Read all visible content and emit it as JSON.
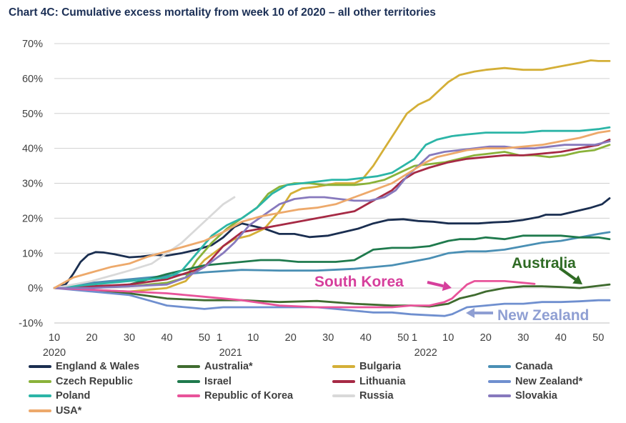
{
  "chart_data": {
    "type": "line",
    "title": "Chart 4C: Cumulative excess mortality from week 10 of 2020 – all other territories",
    "xlabel": "",
    "ylabel": "",
    "ylim": [
      -10,
      70
    ],
    "y_ticks": [
      "70%",
      "60%",
      "50%",
      "40%",
      "30%",
      "20%",
      "10%",
      "0%",
      "-10%"
    ],
    "x_ticks": [
      {
        "week": 10,
        "label": "10"
      },
      {
        "week": 20,
        "label": "20"
      },
      {
        "week": 30,
        "label": "30"
      },
      {
        "week": 40,
        "label": "40"
      },
      {
        "week": 50,
        "label": "50"
      },
      {
        "week": 54,
        "label": "1"
      },
      {
        "week": 63,
        "label": "10"
      },
      {
        "week": 73,
        "label": "20"
      },
      {
        "week": 83,
        "label": "30"
      },
      {
        "week": 93,
        "label": "40"
      },
      {
        "week": 103,
        "label": "50"
      },
      {
        "week": 106,
        "label": "1"
      },
      {
        "week": 115,
        "label": "10"
      },
      {
        "week": 125,
        "label": "20"
      },
      {
        "week": 135,
        "label": "30"
      },
      {
        "week": 145,
        "label": "40"
      },
      {
        "week": 155,
        "label": "50"
      }
    ],
    "year_labels": [
      {
        "week": 10,
        "label": "2020"
      },
      {
        "week": 57,
        "label": "2021"
      },
      {
        "week": 109,
        "label": "2022"
      }
    ],
    "x_range": [
      10,
      158
    ],
    "grid": true,
    "legend_position": "bottom",
    "series": [
      {
        "name": "England & Wales",
        "color": "#1a2e50",
        "x": [
          10,
          13,
          15,
          17,
          19,
          21,
          23,
          26,
          30,
          33,
          37,
          40,
          44,
          48,
          52,
          55,
          58,
          60,
          62,
          66,
          70,
          74,
          78,
          83,
          87,
          91,
          95,
          99,
          103,
          107,
          111,
          115,
          119,
          123,
          127,
          131,
          135,
          139,
          141,
          145,
          149,
          153,
          156,
          158
        ],
        "y": [
          0,
          1,
          4,
          7.5,
          9.5,
          10.3,
          10.2,
          9.7,
          8.8,
          9,
          9.5,
          9.3,
          10,
          11,
          12.3,
          14.5,
          17.5,
          18.5,
          18,
          17,
          15.5,
          15.5,
          14.6,
          15,
          16,
          17,
          18.5,
          19.5,
          19.7,
          19.2,
          19,
          18.5,
          18.5,
          18.5,
          18.8,
          19,
          19.5,
          20.3,
          21,
          21,
          22,
          23,
          24,
          25.7
        ]
      },
      {
        "name": "Australia*",
        "color": "#3f6b2f",
        "x": [
          10,
          20,
          30,
          40,
          50,
          60,
          70,
          80,
          90,
          100,
          105,
          110,
          115,
          118,
          122,
          125,
          130,
          135,
          140,
          145,
          150,
          158
        ],
        "y": [
          0,
          -0.5,
          -1.5,
          -3,
          -3.5,
          -3.5,
          -4,
          -3.7,
          -4.5,
          -5,
          -5,
          -5.3,
          -4.5,
          -3,
          -2,
          -1,
          0,
          0.5,
          0.5,
          0.3,
          0,
          1
        ]
      },
      {
        "name": "Bulgaria",
        "color": "#d4af37",
        "x": [
          10,
          20,
          30,
          40,
          45,
          50,
          55,
          58,
          62,
          66,
          70,
          73,
          76,
          80,
          85,
          90,
          92,
          95,
          98,
          101,
          104,
          107,
          110,
          113,
          115,
          118,
          122,
          125,
          130,
          135,
          140,
          145,
          150,
          153,
          155,
          158
        ],
        "y": [
          0,
          -0.5,
          -1,
          0,
          2,
          8,
          12,
          14,
          15,
          17,
          22,
          27,
          28.5,
          29,
          30,
          30,
          31,
          35,
          40,
          45,
          50,
          52.5,
          54,
          57,
          59,
          61,
          62,
          62.5,
          63,
          62.5,
          62.5,
          63.5,
          64.5,
          65.2,
          65,
          65
        ]
      },
      {
        "name": "Canada",
        "color": "#4a8fb4",
        "x": [
          10,
          20,
          30,
          40,
          50,
          60,
          70,
          80,
          90,
          100,
          110,
          115,
          120,
          125,
          130,
          135,
          140,
          145,
          150,
          155,
          158
        ],
        "y": [
          0,
          1.5,
          2.5,
          3.5,
          4.5,
          5.2,
          5,
          5,
          5.5,
          6.5,
          8.5,
          10,
          10.5,
          10.5,
          11,
          12,
          13,
          13.5,
          14.5,
          15.5,
          16
        ]
      },
      {
        "name": "Czech Republic",
        "color": "#8ab23a",
        "x": [
          10,
          20,
          30,
          40,
          45,
          48,
          52,
          56,
          60,
          64,
          67,
          70,
          74,
          78,
          82,
          86,
          90,
          94,
          98,
          102,
          106,
          110,
          114,
          118,
          122,
          126,
          130,
          134,
          138,
          142,
          146,
          150,
          154,
          158
        ],
        "y": [
          0,
          0.2,
          0.5,
          1.5,
          3,
          8,
          13,
          17,
          20,
          23,
          27,
          29,
          30,
          30,
          29.5,
          29.5,
          29.5,
          30,
          31,
          33,
          35,
          35.5,
          36,
          37,
          38,
          38.5,
          39,
          38,
          38,
          37.5,
          38,
          39,
          39.5,
          41
        ]
      },
      {
        "name": "Israel",
        "color": "#1f7a4d",
        "x": [
          10,
          20,
          30,
          40,
          50,
          55,
          60,
          65,
          70,
          75,
          80,
          85,
          90,
          95,
          100,
          105,
          110,
          115,
          118,
          122,
          125,
          130,
          135,
          140,
          145,
          150,
          155,
          158
        ],
        "y": [
          0,
          0,
          1,
          4,
          6.5,
          7,
          7.5,
          8,
          8,
          7.5,
          7.5,
          7.5,
          8,
          11,
          11.5,
          11.5,
          12,
          13.5,
          14,
          14,
          14.5,
          14,
          15,
          15,
          15,
          14.5,
          14.5,
          14
        ]
      },
      {
        "name": "Lithuania",
        "color": "#a62a45",
        "x": [
          10,
          20,
          30,
          40,
          50,
          55,
          60,
          65,
          70,
          75,
          80,
          85,
          90,
          95,
          100,
          103,
          106,
          110,
          115,
          120,
          125,
          130,
          135,
          140,
          145,
          150,
          155,
          158
        ],
        "y": [
          0,
          0.5,
          1,
          2.5,
          6,
          12,
          16,
          17,
          18,
          19,
          20,
          21,
          22,
          25,
          28,
          31,
          33,
          34.5,
          36,
          37,
          37.5,
          38,
          38,
          38.5,
          39,
          40,
          41,
          42.5
        ]
      },
      {
        "name": "New Zealand*",
        "color": "#6f8fcf",
        "x": [
          10,
          20,
          30,
          35,
          40,
          45,
          50,
          55,
          60,
          65,
          70,
          75,
          80,
          85,
          90,
          95,
          100,
          105,
          110,
          114,
          116,
          118,
          120,
          125,
          130,
          135,
          140,
          145,
          150,
          155,
          158
        ],
        "y": [
          0,
          -1,
          -2,
          -3.5,
          -5,
          -5.5,
          -6,
          -5.5,
          -5.5,
          -5.5,
          -5.5,
          -5.5,
          -5.5,
          -6,
          -6.5,
          -7,
          -7,
          -7.5,
          -7.8,
          -8,
          -7.5,
          -6.5,
          -5.5,
          -5,
          -4.5,
          -4.5,
          -4,
          -4,
          -3.8,
          -3.5,
          -3.5
        ]
      },
      {
        "name": "Poland",
        "color": "#2cb5a7",
        "x": [
          10,
          20,
          30,
          40,
          44,
          48,
          52,
          56,
          60,
          64,
          68,
          72,
          76,
          80,
          84,
          88,
          92,
          96,
          100,
          103,
          106,
          109,
          112,
          116,
          120,
          125,
          130,
          135,
          140,
          145,
          150,
          155,
          158
        ],
        "y": [
          0,
          1,
          2,
          3,
          5,
          10,
          15,
          18,
          20,
          23,
          27,
          29.5,
          30,
          30.5,
          31,
          31,
          31.5,
          32,
          33,
          35,
          37,
          41,
          42.5,
          43.5,
          44,
          44.5,
          44.5,
          44.5,
          45,
          45,
          45,
          45.5,
          46
        ]
      },
      {
        "name": "Republic of Korea",
        "color": "#e8539a",
        "x": [
          10,
          20,
          30,
          40,
          50,
          60,
          70,
          80,
          90,
          100,
          105,
          110,
          112,
          114,
          116,
          118,
          120,
          122,
          125,
          130,
          135,
          138
        ],
        "y": [
          0,
          -0.5,
          -1,
          -1.5,
          -2.5,
          -3.5,
          -5,
          -5.5,
          -5.5,
          -5.5,
          -5,
          -5,
          -4.5,
          -4,
          -3,
          -1,
          1,
          2,
          2,
          2,
          1.5,
          1.2
        ]
      },
      {
        "name": "Russia",
        "color": "#d9d9d9",
        "x": [
          10,
          20,
          30,
          36,
          40,
          44,
          48,
          52,
          55,
          58
        ],
        "y": [
          0,
          2,
          5,
          7,
          10,
          13,
          17,
          21,
          24,
          26
        ]
      },
      {
        "name": "Slovakia",
        "color": "#8779bd",
        "x": [
          10,
          20,
          30,
          40,
          45,
          50,
          55,
          58,
          62,
          66,
          70,
          74,
          78,
          82,
          86,
          90,
          94,
          98,
          101,
          104,
          107,
          110,
          114,
          118,
          122,
          126,
          130,
          134,
          138,
          142,
          146,
          150,
          154,
          158
        ],
        "y": [
          0,
          0,
          0.5,
          1,
          3,
          6,
          10,
          13,
          18,
          21,
          24,
          25.5,
          26,
          26,
          25.5,
          25,
          25,
          26,
          28,
          32,
          35,
          38,
          39,
          39.5,
          40,
          40.5,
          40.5,
          40,
          40,
          40.5,
          41,
          41,
          41,
          42
        ]
      },
      {
        "name": "USA*",
        "color": "#eda96b",
        "x": [
          10,
          15,
          20,
          25,
          30,
          35,
          40,
          45,
          50,
          55,
          60,
          65,
          70,
          75,
          80,
          85,
          90,
          95,
          100,
          103,
          106,
          109,
          112,
          116,
          120,
          125,
          130,
          135,
          140,
          145,
          150,
          155,
          158
        ],
        "y": [
          0,
          3,
          4.5,
          6,
          7,
          9,
          10.5,
          12,
          13.5,
          16,
          19,
          20.5,
          21.5,
          22.5,
          23,
          24,
          26,
          28,
          30,
          32,
          34,
          36,
          37.5,
          38.5,
          39.5,
          40,
          40,
          40.5,
          41,
          42,
          43,
          44.5,
          45
        ]
      }
    ],
    "annotations": [
      {
        "label": "South Korea",
        "color": "#d63f9c",
        "week": 126,
        "value": 1.5,
        "text_week": 116,
        "text_value": 2.5
      },
      {
        "label": "Australia",
        "color": "#2f6b24",
        "week": 146,
        "value": 1,
        "text_week": 145,
        "text_value": 7.5
      },
      {
        "label": "New Zealand",
        "color": "#8f9fd3",
        "week": 121,
        "value": -7.2,
        "text_week": 150,
        "text_value": -7.5
      }
    ]
  }
}
